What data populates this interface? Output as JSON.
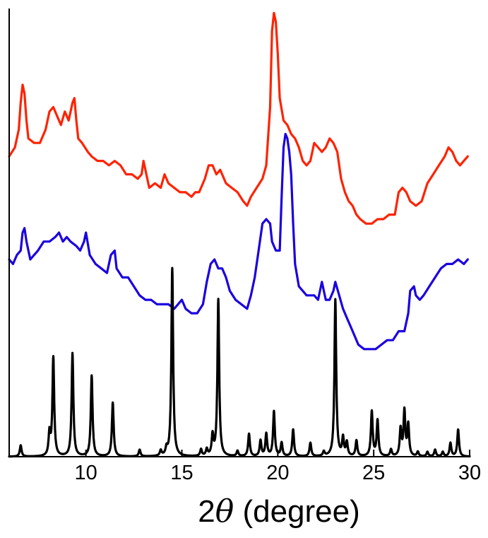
{
  "chart_data": {
    "type": "line",
    "title": "",
    "xlabel": {
      "prefix": "2",
      "symbol": "θ",
      "suffix": " (degree)"
    },
    "ylabel": "",
    "xlim": [
      6,
      30
    ],
    "ylim": [
      0,
      10
    ],
    "x_ticks": [
      10,
      15,
      20,
      25,
      30
    ],
    "x_tick_labels": [
      "10",
      "15",
      "20",
      "25",
      "30"
    ],
    "y_ticks_shown": false,
    "grid": false,
    "legend": "none",
    "series": [
      {
        "color": "#ff2200",
        "kind": "measured",
        "points": [
          [
            6.0,
            6.7
          ],
          [
            6.3,
            6.9
          ],
          [
            6.5,
            7.3
          ],
          [
            6.6,
            7.9
          ],
          [
            6.7,
            8.3
          ],
          [
            6.8,
            8.1
          ],
          [
            6.9,
            7.5
          ],
          [
            7.0,
            7.1
          ],
          [
            7.3,
            7.0
          ],
          [
            7.6,
            7.0
          ],
          [
            7.9,
            7.3
          ],
          [
            8.1,
            7.7
          ],
          [
            8.3,
            7.8
          ],
          [
            8.5,
            7.6
          ],
          [
            8.7,
            7.4
          ],
          [
            8.9,
            7.7
          ],
          [
            9.1,
            7.5
          ],
          [
            9.3,
            7.9
          ],
          [
            9.4,
            8.0
          ],
          [
            9.5,
            7.5
          ],
          [
            9.6,
            7.1
          ],
          [
            9.8,
            7.0
          ],
          [
            10.1,
            6.8
          ],
          [
            10.3,
            6.7
          ],
          [
            10.6,
            6.6
          ],
          [
            10.9,
            6.6
          ],
          [
            11.2,
            6.5
          ],
          [
            11.5,
            6.6
          ],
          [
            11.8,
            6.5
          ],
          [
            12.1,
            6.3
          ],
          [
            12.4,
            6.3
          ],
          [
            12.7,
            6.2
          ],
          [
            12.9,
            6.3
          ],
          [
            13.0,
            6.6
          ],
          [
            13.1,
            6.4
          ],
          [
            13.3,
            6.0
          ],
          [
            13.6,
            6.1
          ],
          [
            13.9,
            6.0
          ],
          [
            14.1,
            6.3
          ],
          [
            14.3,
            6.1
          ],
          [
            14.6,
            6.0
          ],
          [
            14.9,
            5.9
          ],
          [
            15.2,
            5.9
          ],
          [
            15.5,
            5.8
          ],
          [
            15.7,
            5.9
          ],
          [
            15.9,
            5.9
          ],
          [
            16.2,
            6.2
          ],
          [
            16.4,
            6.5
          ],
          [
            16.6,
            6.5
          ],
          [
            16.8,
            6.3
          ],
          [
            17.0,
            6.4
          ],
          [
            17.3,
            6.1
          ],
          [
            17.6,
            6.0
          ],
          [
            17.9,
            5.9
          ],
          [
            18.2,
            5.7
          ],
          [
            18.4,
            5.6
          ],
          [
            18.6,
            5.8
          ],
          [
            18.9,
            6.0
          ],
          [
            19.2,
            6.2
          ],
          [
            19.4,
            6.5
          ],
          [
            19.6,
            7.8
          ],
          [
            19.7,
            9.5
          ],
          [
            19.8,
            9.9
          ],
          [
            19.9,
            9.7
          ],
          [
            20.0,
            9.0
          ],
          [
            20.1,
            8.0
          ],
          [
            20.3,
            7.5
          ],
          [
            20.5,
            7.4
          ],
          [
            20.7,
            7.2
          ],
          [
            20.9,
            7.1
          ],
          [
            21.1,
            6.9
          ],
          [
            21.3,
            6.6
          ],
          [
            21.5,
            6.5
          ],
          [
            21.7,
            6.6
          ],
          [
            21.9,
            7.0
          ],
          [
            22.1,
            6.9
          ],
          [
            22.3,
            6.8
          ],
          [
            22.5,
            6.9
          ],
          [
            22.7,
            7.1
          ],
          [
            22.9,
            7.0
          ],
          [
            23.1,
            6.8
          ],
          [
            23.3,
            6.2
          ],
          [
            23.5,
            5.9
          ],
          [
            23.7,
            5.7
          ],
          [
            23.9,
            5.6
          ],
          [
            24.1,
            5.4
          ],
          [
            24.3,
            5.3
          ],
          [
            24.6,
            5.2
          ],
          [
            24.9,
            5.2
          ],
          [
            25.2,
            5.3
          ],
          [
            25.5,
            5.3
          ],
          [
            25.8,
            5.4
          ],
          [
            26.1,
            5.4
          ],
          [
            26.3,
            5.9
          ],
          [
            26.5,
            6.0
          ],
          [
            26.7,
            5.9
          ],
          [
            26.9,
            5.7
          ],
          [
            27.2,
            5.6
          ],
          [
            27.5,
            5.7
          ],
          [
            27.8,
            6.1
          ],
          [
            28.1,
            6.3
          ],
          [
            28.4,
            6.5
          ],
          [
            28.7,
            6.7
          ],
          [
            28.9,
            6.9
          ],
          [
            29.1,
            6.8
          ],
          [
            29.3,
            6.6
          ],
          [
            29.5,
            6.5
          ],
          [
            29.7,
            6.6
          ],
          [
            29.9,
            6.7
          ]
        ]
      },
      {
        "color": "#1a00e0",
        "kind": "measured",
        "points": [
          [
            6.0,
            4.4
          ],
          [
            6.2,
            4.3
          ],
          [
            6.4,
            4.5
          ],
          [
            6.6,
            4.6
          ],
          [
            6.7,
            5.0
          ],
          [
            6.8,
            5.1
          ],
          [
            6.9,
            4.8
          ],
          [
            7.1,
            4.4
          ],
          [
            7.3,
            4.5
          ],
          [
            7.5,
            4.6
          ],
          [
            7.8,
            4.8
          ],
          [
            8.1,
            4.8
          ],
          [
            8.4,
            4.9
          ],
          [
            8.6,
            5.0
          ],
          [
            8.8,
            4.8
          ],
          [
            9.0,
            4.9
          ],
          [
            9.2,
            4.8
          ],
          [
            9.5,
            4.7
          ],
          [
            9.7,
            4.6
          ],
          [
            9.9,
            4.8
          ],
          [
            10.0,
            5.0
          ],
          [
            10.2,
            4.5
          ],
          [
            10.5,
            4.3
          ],
          [
            10.8,
            4.2
          ],
          [
            11.1,
            4.1
          ],
          [
            11.3,
            4.5
          ],
          [
            11.5,
            4.6
          ],
          [
            11.6,
            4.2
          ],
          [
            11.9,
            4.0
          ],
          [
            12.2,
            4.0
          ],
          [
            12.5,
            3.8
          ],
          [
            12.8,
            3.6
          ],
          [
            13.1,
            3.5
          ],
          [
            13.4,
            3.5
          ],
          [
            13.7,
            3.4
          ],
          [
            14.0,
            3.4
          ],
          [
            14.3,
            3.4
          ],
          [
            14.6,
            3.3
          ],
          [
            14.8,
            3.4
          ],
          [
            15.0,
            3.5
          ],
          [
            15.2,
            3.3
          ],
          [
            15.5,
            3.2
          ],
          [
            15.8,
            3.2
          ],
          [
            16.1,
            3.4
          ],
          [
            16.3,
            3.9
          ],
          [
            16.5,
            4.3
          ],
          [
            16.7,
            4.4
          ],
          [
            16.9,
            4.2
          ],
          [
            17.1,
            4.2
          ],
          [
            17.3,
            4.0
          ],
          [
            17.5,
            3.7
          ],
          [
            17.8,
            3.5
          ],
          [
            18.1,
            3.4
          ],
          [
            18.4,
            3.3
          ],
          [
            18.6,
            3.6
          ],
          [
            18.8,
            4.0
          ],
          [
            19.0,
            4.6
          ],
          [
            19.2,
            5.2
          ],
          [
            19.4,
            5.3
          ],
          [
            19.6,
            5.2
          ],
          [
            19.7,
            4.8
          ],
          [
            19.9,
            4.6
          ],
          [
            20.1,
            4.6
          ],
          [
            20.2,
            5.8
          ],
          [
            20.3,
            6.9
          ],
          [
            20.4,
            7.2
          ],
          [
            20.5,
            7.1
          ],
          [
            20.6,
            6.8
          ],
          [
            20.7,
            6.3
          ],
          [
            20.8,
            5.2
          ],
          [
            20.9,
            4.3
          ],
          [
            21.1,
            3.8
          ],
          [
            21.3,
            3.7
          ],
          [
            21.5,
            3.6
          ],
          [
            21.7,
            3.6
          ],
          [
            21.9,
            3.6
          ],
          [
            22.1,
            3.5
          ],
          [
            22.3,
            3.9
          ],
          [
            22.5,
            3.5
          ],
          [
            22.7,
            3.5
          ],
          [
            22.9,
            3.7
          ],
          [
            23.0,
            3.9
          ],
          [
            23.2,
            3.6
          ],
          [
            23.4,
            3.3
          ],
          [
            23.6,
            3.1
          ],
          [
            23.8,
            2.9
          ],
          [
            24.0,
            2.7
          ],
          [
            24.2,
            2.5
          ],
          [
            24.5,
            2.4
          ],
          [
            24.8,
            2.4
          ],
          [
            25.1,
            2.4
          ],
          [
            25.4,
            2.5
          ],
          [
            25.7,
            2.6
          ],
          [
            26.0,
            2.6
          ],
          [
            26.3,
            2.8
          ],
          [
            26.6,
            2.8
          ],
          [
            26.8,
            3.2
          ],
          [
            26.9,
            3.7
          ],
          [
            27.1,
            3.8
          ],
          [
            27.2,
            3.6
          ],
          [
            27.4,
            3.5
          ],
          [
            27.6,
            3.6
          ],
          [
            27.9,
            3.8
          ],
          [
            28.2,
            4.0
          ],
          [
            28.5,
            4.2
          ],
          [
            28.8,
            4.3
          ],
          [
            29.1,
            4.3
          ],
          [
            29.4,
            4.4
          ],
          [
            29.7,
            4.3
          ],
          [
            29.9,
            4.4
          ]
        ]
      },
      {
        "color": "#000000",
        "kind": "simulated",
        "baseline": 0.0,
        "peaks": [
          [
            6.6,
            0.25
          ],
          [
            8.1,
            0.5
          ],
          [
            8.3,
            2.2
          ],
          [
            9.3,
            2.3
          ],
          [
            10.3,
            1.8
          ],
          [
            11.4,
            1.2
          ],
          [
            12.8,
            0.15
          ],
          [
            13.9,
            0.12
          ],
          [
            14.2,
            0.15
          ],
          [
            14.5,
            4.2
          ],
          [
            16.0,
            0.15
          ],
          [
            16.3,
            0.15
          ],
          [
            16.6,
            0.45
          ],
          [
            16.9,
            3.5
          ],
          [
            17.9,
            0.12
          ],
          [
            18.5,
            0.5
          ],
          [
            19.1,
            0.35
          ],
          [
            19.4,
            0.5
          ],
          [
            19.8,
            1.0
          ],
          [
            20.2,
            0.3
          ],
          [
            20.8,
            0.6
          ],
          [
            21.7,
            0.3
          ],
          [
            22.4,
            0.1
          ],
          [
            23.0,
            3.5
          ],
          [
            23.4,
            0.4
          ],
          [
            23.6,
            0.3
          ],
          [
            24.1,
            0.35
          ],
          [
            24.9,
            1.0
          ],
          [
            25.2,
            0.8
          ],
          [
            25.9,
            0.15
          ],
          [
            26.4,
            0.6
          ],
          [
            26.6,
            1.0
          ],
          [
            26.8,
            0.7
          ],
          [
            27.3,
            0.1
          ],
          [
            27.8,
            0.1
          ],
          [
            28.2,
            0.15
          ],
          [
            28.6,
            0.1
          ],
          [
            29.0,
            0.3
          ],
          [
            29.4,
            0.6
          ]
        ]
      }
    ]
  }
}
